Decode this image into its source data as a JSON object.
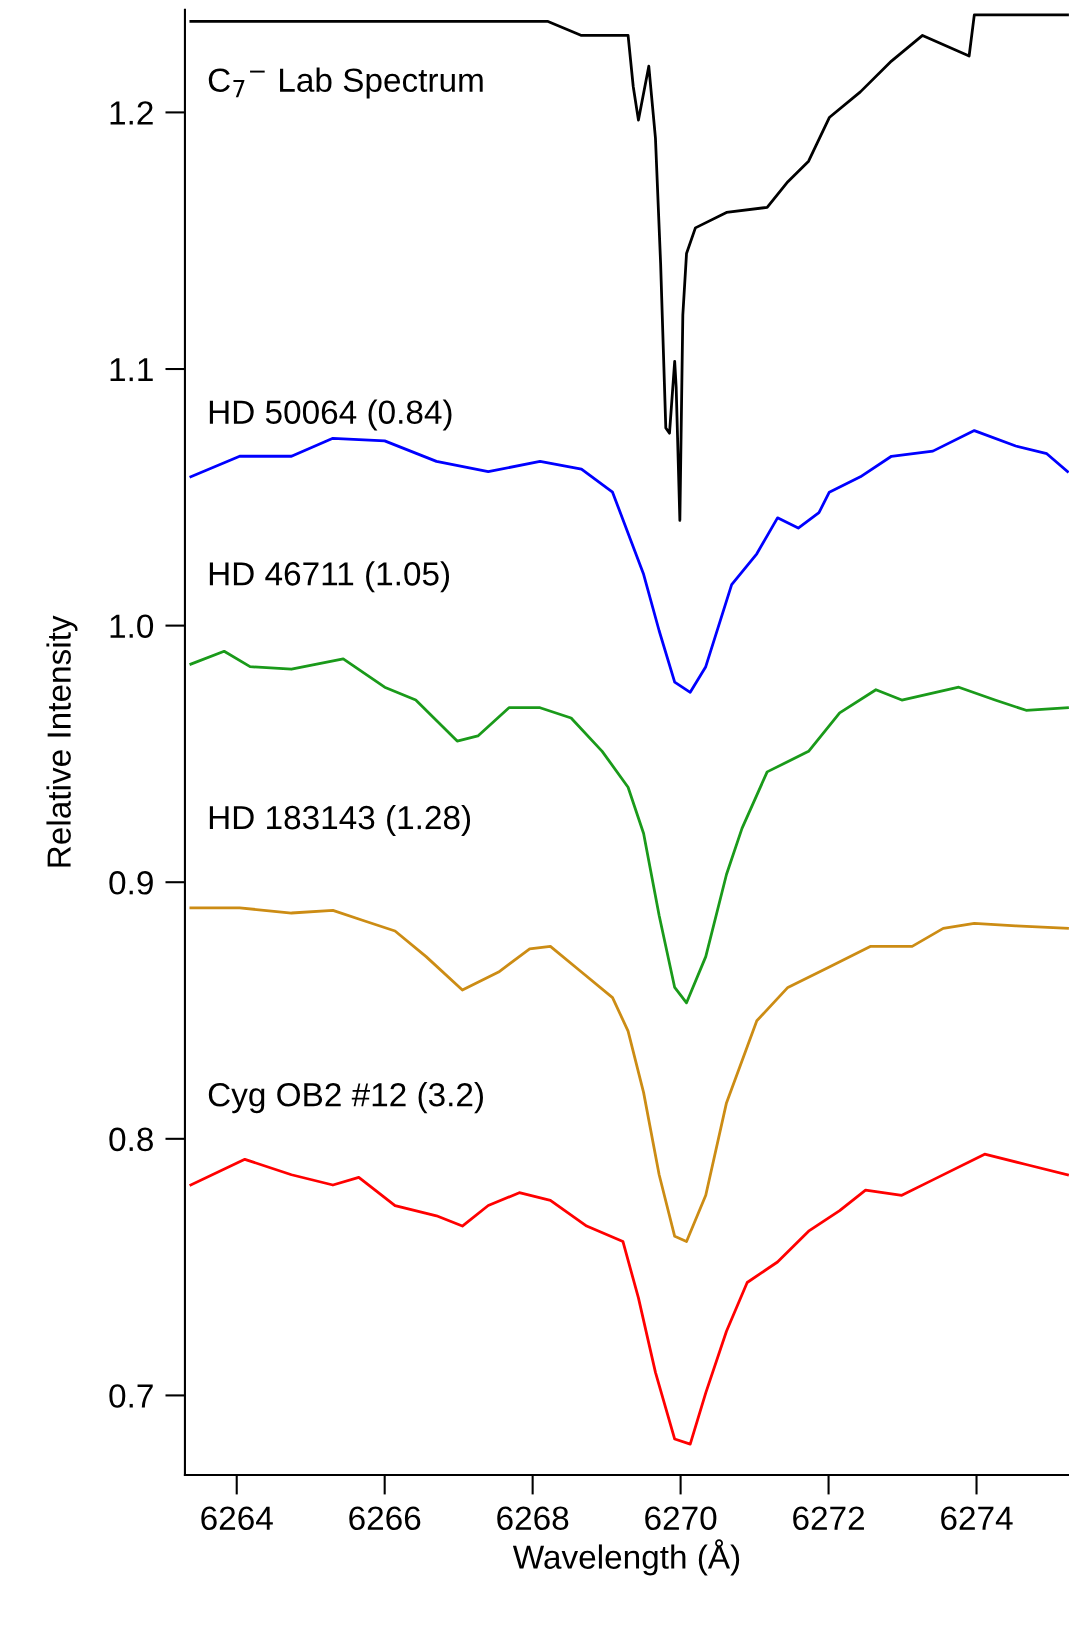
{
  "chart_data": {
    "type": "line",
    "xlabel": "Wavelength (Å)",
    "ylabel": "Relative Intensity",
    "xlim": [
      6263.3,
      6275.25
    ],
    "xticks": [
      6264,
      6266,
      6268,
      6270,
      6272,
      6274
    ],
    "ylim": [
      0.669,
      1.24
    ],
    "yticks": [
      0.7,
      0.8,
      0.9,
      {
        "value": 1.0,
        "label": "1.0"
      },
      1.1,
      1.2
    ],
    "grid": false,
    "legend": false,
    "series": [
      {
        "name": "C$_{7}$$^{−}$ Lab Spectrum",
        "color": "#000000",
        "x": [
          6263.38,
          6268.2,
          6268.66,
          6269.29,
          6269.36,
          6269.43,
          6269.57,
          6269.66,
          6269.73,
          6269.8,
          6269.85,
          6269.92,
          6269.94,
          6269.99,
          6270.03,
          6270.08,
          6270.2,
          6270.62,
          6271.17,
          6271.45,
          6271.73,
          6272.01,
          6272.43,
          6272.85,
          6273.27,
          6273.9,
          6273.97,
          6275.23
        ],
        "values": [
          1.2355,
          1.2355,
          1.23,
          1.23,
          1.21,
          1.197,
          1.218,
          1.19,
          1.141,
          1.077,
          1.075,
          1.103,
          1.093,
          1.041,
          1.121,
          1.145,
          1.155,
          1.161,
          1.163,
          1.173,
          1.181,
          1.198,
          1.208,
          1.22,
          1.23,
          1.222,
          1.238,
          1.238
        ]
      },
      {
        "name": "HD 50064 (0.84)",
        "color": "#0000ff",
        "x": [
          6263.38,
          6264.04,
          6264.74,
          6265.3,
          6266.0,
          6266.7,
          6267.4,
          6268.1,
          6268.66,
          6269.08,
          6269.29,
          6269.5,
          6269.71,
          6269.92,
          6270.13,
          6270.34,
          6270.69,
          6271.03,
          6271.31,
          6271.59,
          6271.87,
          6272.01,
          6272.43,
          6272.85,
          6273.41,
          6273.97,
          6274.53,
          6274.95,
          6275.23
        ],
        "values": [
          1.058,
          1.066,
          1.066,
          1.073,
          1.072,
          1.064,
          1.06,
          1.064,
          1.061,
          1.052,
          1.036,
          1.02,
          0.998,
          0.978,
          0.974,
          0.984,
          1.016,
          1.028,
          1.042,
          1.038,
          1.044,
          1.052,
          1.058,
          1.066,
          1.068,
          1.076,
          1.07,
          1.067,
          1.06
        ]
      },
      {
        "name": "HD 46711 (1.05)",
        "color": "#1a9a1a",
        "x": [
          6263.38,
          6263.83,
          6264.18,
          6264.74,
          6265.44,
          6266.0,
          6266.42,
          6266.84,
          6266.98,
          6267.26,
          6267.68,
          6268.1,
          6268.52,
          6268.94,
          6269.29,
          6269.5,
          6269.71,
          6269.92,
          6270.08,
          6270.34,
          6270.62,
          6270.83,
          6271.17,
          6271.73,
          6272.15,
          6272.64,
          6272.99,
          6273.76,
          6274.25,
          6274.67,
          6275.23
        ],
        "values": [
          0.985,
          0.99,
          0.984,
          0.983,
          0.987,
          0.976,
          0.971,
          0.959,
          0.955,
          0.957,
          0.968,
          0.968,
          0.964,
          0.951,
          0.937,
          0.919,
          0.887,
          0.859,
          0.853,
          0.871,
          0.903,
          0.921,
          0.943,
          0.951,
          0.966,
          0.975,
          0.971,
          0.976,
          0.971,
          0.967,
          0.968
        ]
      },
      {
        "name": "HD 183143 (1.28)",
        "color": "#cc8c14",
        "x": [
          6263.38,
          6264.04,
          6264.74,
          6265.3,
          6265.72,
          6266.14,
          6266.56,
          6267.05,
          6267.54,
          6267.96,
          6268.24,
          6268.66,
          6269.08,
          6269.29,
          6269.5,
          6269.71,
          6269.92,
          6270.08,
          6270.34,
          6270.62,
          6271.03,
          6271.45,
          6272.01,
          6272.57,
          6273.13,
          6273.55,
          6273.97,
          6274.53,
          6275.23
        ],
        "values": [
          0.89,
          0.89,
          0.888,
          0.889,
          0.885,
          0.881,
          0.871,
          0.858,
          0.865,
          0.874,
          0.875,
          0.865,
          0.855,
          0.842,
          0.818,
          0.786,
          0.762,
          0.76,
          0.778,
          0.814,
          0.846,
          0.859,
          0.867,
          0.875,
          0.875,
          0.882,
          0.884,
          0.883,
          0.882
        ]
      },
      {
        "name": "Cyg OB2 #12 (3.2)",
        "color": "#ff0000",
        "x": [
          6263.38,
          6264.11,
          6264.74,
          6265.3,
          6265.65,
          6266.14,
          6266.7,
          6267.05,
          6267.4,
          6267.82,
          6268.24,
          6268.73,
          6269.22,
          6269.43,
          6269.66,
          6269.92,
          6270.13,
          6270.34,
          6270.62,
          6270.9,
          6271.31,
          6271.73,
          6272.15,
          6272.5,
          6272.99,
          6273.41,
          6274.11,
          6274.67,
          6275.23
        ],
        "values": [
          0.782,
          0.792,
          0.786,
          0.782,
          0.785,
          0.774,
          0.77,
          0.766,
          0.774,
          0.779,
          0.776,
          0.766,
          0.76,
          0.738,
          0.709,
          0.683,
          0.681,
          0.701,
          0.725,
          0.744,
          0.752,
          0.764,
          0.772,
          0.78,
          0.778,
          0.784,
          0.794,
          0.79,
          0.786
        ]
      }
    ]
  }
}
